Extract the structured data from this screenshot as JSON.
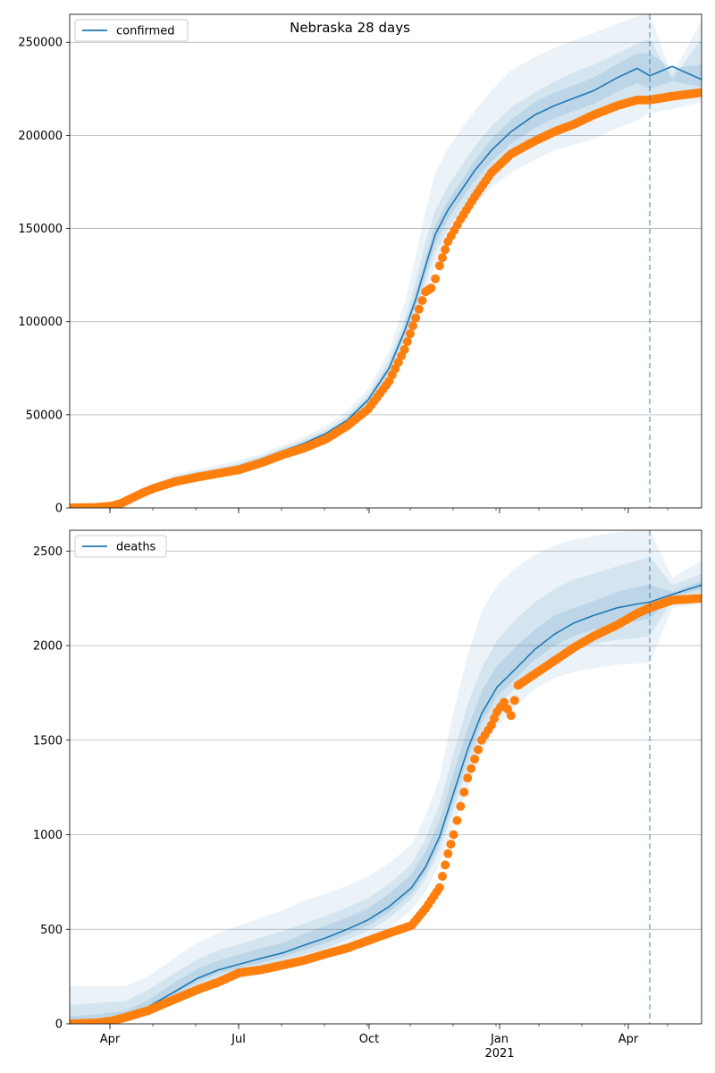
{
  "chart_data": [
    {
      "type": "line",
      "title": "Nebraska 28 days",
      "xlabel": "",
      "ylabel": "",
      "x_ticks": [
        "Apr",
        "Jul",
        "Oct",
        "Jan",
        "Apr"
      ],
      "x_ticks_secondary": [
        "",
        "",
        "",
        "2021",
        ""
      ],
      "xlim": [
        "2020-03-06",
        "2021-05-31"
      ],
      "ylim": [
        0,
        265000
      ],
      "y_ticks": [
        0,
        50000,
        100000,
        150000,
        200000,
        250000
      ],
      "grid": "horizontal",
      "legend": {
        "placement": "top-left",
        "entries": [
          "confirmed"
        ]
      },
      "forecast_date": "2021-04-24",
      "series": [
        {
          "name": "confirmed",
          "style": "line",
          "x": [
            "2020-03-06",
            "2020-03-25",
            "2020-04-05",
            "2020-04-20",
            "2020-05-05",
            "2020-05-20",
            "2020-06-05",
            "2020-06-20",
            "2020-07-05",
            "2020-07-20",
            "2020-08-05",
            "2020-08-20",
            "2020-09-05",
            "2020-09-20",
            "2020-10-05",
            "2020-10-20",
            "2020-10-31",
            "2020-11-08",
            "2020-11-15",
            "2020-11-22",
            "2020-12-01",
            "2020-12-10",
            "2020-12-20",
            "2021-01-01",
            "2021-01-15",
            "2021-02-01",
            "2021-02-15",
            "2021-03-01",
            "2021-03-15",
            "2021-04-01",
            "2021-04-15",
            "2021-04-24",
            "2021-05-10",
            "2021-05-31"
          ],
          "values": [
            0,
            100,
            1000,
            5000,
            11000,
            15500,
            18000,
            20000,
            22500,
            26000,
            30500,
            34500,
            40000,
            47000,
            58000,
            75000,
            95000,
            112000,
            130000,
            147000,
            160000,
            170000,
            181000,
            192000,
            202000,
            211000,
            216000,
            220000,
            224000,
            231000,
            236000,
            232000,
            237000,
            230000
          ],
          "bands": [
            {
              "level": "outer",
              "lower": [
                0,
                0,
                500,
                3500,
                9000,
                13000,
                15500,
                17500,
                20000,
                23000,
                27500,
                31500,
                37000,
                43000,
                53000,
                68000,
                86000,
                100000,
                115000,
                130000,
                142000,
                152000,
                162000,
                172000,
                180000,
                187000,
                192000,
                195000,
                198000,
                204000,
                208000,
                212000,
                214000,
                218000
              ],
              "upper": [
                300,
                500,
                1500,
                6500,
                13000,
                18000,
                20500,
                23000,
                25500,
                29000,
                33500,
                38000,
                44000,
                52000,
                64000,
                84000,
                110000,
                135000,
                160000,
                180000,
                193000,
                203000,
                213000,
                224000,
                235000,
                242000,
                247000,
                251000,
                255000,
                260000,
                264000,
                265000,
                232000,
                262000
              ]
            },
            {
              "level": "mid",
              "lower": [
                0,
                0,
                700,
                4000,
                9800,
                14000,
                16500,
                18500,
                21000,
                24500,
                28800,
                33000,
                38500,
                45000,
                55500,
                71000,
                90000,
                105000,
                121000,
                137000,
                150000,
                160000,
                170000,
                180000,
                189000,
                197000,
                202000,
                206000,
                210000,
                216000,
                220000,
                220000,
                222000,
                222000
              ],
              "upper": [
                200,
                300,
                1300,
                6000,
                12200,
                17000,
                19500,
                21500,
                24000,
                27500,
                32200,
                36500,
                42000,
                49500,
                61000,
                79500,
                101000,
                122000,
                143000,
                160000,
                173000,
                183000,
                194000,
                205000,
                215000,
                223000,
                229000,
                234000,
                238000,
                244000,
                249000,
                252000,
                230000,
                252000
              ]
            },
            {
              "level": "inner",
              "lower": [
                0,
                0,
                850,
                4500,
                10400,
                14800,
                17200,
                19300,
                21800,
                25300,
                29700,
                33700,
                39300,
                46000,
                56800,
                73000,
                92500,
                108500,
                125500,
                142000,
                155000,
                165000,
                175500,
                186000,
                195500,
                204000,
                209000,
                213000,
                217000,
                223500,
                228000,
                225000,
                229000,
                226000
              ],
              "upper": [
                100,
                200,
                1150,
                5500,
                11600,
                16200,
                18800,
                20700,
                23200,
                26700,
                31300,
                35300,
                40700,
                48000,
                59200,
                77000,
                97500,
                115500,
                134500,
                152000,
                165000,
                175000,
                186500,
                198000,
                208500,
                218000,
                223000,
                227000,
                231000,
                238500,
                244000,
                244000,
                236000,
                238000
              ]
            }
          ]
        },
        {
          "name": "",
          "style": "points",
          "x": [
            "2020-03-06",
            "2020-03-25",
            "2020-04-05",
            "2020-04-12",
            "2020-04-20",
            "2020-04-27",
            "2020-05-05",
            "2020-05-20",
            "2020-06-05",
            "2020-06-20",
            "2020-07-05",
            "2020-07-20",
            "2020-08-05",
            "2020-08-20",
            "2020-09-05",
            "2020-09-20",
            "2020-10-05",
            "2020-10-20",
            "2020-10-31",
            "2020-11-08",
            "2020-11-15",
            "2020-11-19",
            "2020-11-22",
            "2020-11-25",
            "2020-12-01",
            "2020-12-10",
            "2020-12-20",
            "2021-01-01",
            "2021-01-15",
            "2021-02-01",
            "2021-02-15",
            "2021-03-01",
            "2021-03-15",
            "2021-04-01",
            "2021-04-15",
            "2021-04-24",
            "2021-05-10",
            "2021-05-31"
          ],
          "values": [
            0,
            300,
            1000,
            2500,
            5500,
            8000,
            10500,
            14000,
            16500,
            18500,
            20500,
            24000,
            28500,
            32000,
            37000,
            44000,
            53000,
            68000,
            85000,
            102000,
            116000,
            118000,
            123000,
            130000,
            143000,
            155000,
            167000,
            180000,
            190000,
            197000,
            202000,
            206000,
            211000,
            216000,
            219000,
            219000,
            221000,
            223000
          ]
        }
      ]
    },
    {
      "type": "line",
      "title": "",
      "xlabel": "",
      "ylabel": "",
      "x_ticks": [
        "Apr",
        "Jul",
        "Oct",
        "Jan",
        "Apr"
      ],
      "x_ticks_secondary": [
        "",
        "",
        "",
        "2021",
        ""
      ],
      "xlim": [
        "2020-03-06",
        "2021-05-31"
      ],
      "ylim": [
        0,
        2610
      ],
      "y_ticks": [
        0,
        500,
        1000,
        1500,
        2000,
        2500
      ],
      "grid": "horizontal",
      "legend": {
        "placement": "top-left",
        "entries": [
          "deaths"
        ]
      },
      "forecast_date": "2021-04-24",
      "series": [
        {
          "name": "deaths",
          "style": "line",
          "x": [
            "2020-03-06",
            "2020-03-25",
            "2020-04-15",
            "2020-05-01",
            "2020-05-20",
            "2020-06-05",
            "2020-06-20",
            "2020-07-05",
            "2020-07-20",
            "2020-08-05",
            "2020-08-20",
            "2020-09-05",
            "2020-09-20",
            "2020-10-05",
            "2020-10-20",
            "2020-11-05",
            "2020-11-15",
            "2020-11-25",
            "2020-12-05",
            "2020-12-15",
            "2020-12-25",
            "2021-01-05",
            "2021-01-20",
            "2021-02-01",
            "2021-02-15",
            "2021-03-01",
            "2021-03-15",
            "2021-04-01",
            "2021-04-15",
            "2021-04-24",
            "2021-05-10",
            "2021-05-31"
          ],
          "values": [
            0,
            5,
            30,
            90,
            170,
            240,
            285,
            315,
            345,
            375,
            415,
            455,
            500,
            550,
            620,
            720,
            830,
            990,
            1220,
            1450,
            1640,
            1780,
            1890,
            1980,
            2060,
            2120,
            2160,
            2200,
            2220,
            2230,
            2270,
            2320
          ],
          "bands": [
            {
              "level": "outer",
              "lower": [
                0,
                0,
                5,
                40,
                110,
                170,
                210,
                240,
                260,
                290,
                320,
                355,
                395,
                440,
                505,
                600,
                700,
                850,
                1050,
                1250,
                1430,
                1570,
                1690,
                1770,
                1830,
                1860,
                1880,
                1900,
                1905,
                1910,
                2200,
                2220
              ],
              "upper": [
                200,
                200,
                200,
                250,
                350,
                430,
                480,
                520,
                560,
                600,
                650,
                690,
                730,
                780,
                850,
                950,
                1100,
                1300,
                1650,
                1950,
                2180,
                2320,
                2420,
                2480,
                2530,
                2560,
                2580,
                2600,
                2610,
                2610,
                2360,
                2450
              ]
            },
            {
              "level": "mid",
              "lower": [
                0,
                0,
                15,
                60,
                135,
                200,
                245,
                275,
                300,
                330,
                365,
                400,
                445,
                490,
                560,
                660,
                765,
                920,
                1130,
                1350,
                1540,
                1680,
                1790,
                1870,
                1940,
                1980,
                2010,
                2030,
                2040,
                2050,
                2240,
                2280
              ],
              "upper": [
                100,
                110,
                120,
                180,
                270,
                340,
                390,
                420,
                455,
                490,
                530,
                570,
                615,
                665,
                740,
                845,
                980,
                1160,
                1430,
                1690,
                1880,
                2030,
                2150,
                2230,
                2300,
                2350,
                2380,
                2420,
                2450,
                2470,
                2320,
                2380
              ]
            },
            {
              "level": "inner",
              "lower": [
                0,
                0,
                22,
                74,
                152,
                220,
                265,
                294,
                322,
                352,
                389,
                428,
                472,
                519,
                590,
                690,
                797,
                955,
                1175,
                1400,
                1590,
                1730,
                1840,
                1925,
                2000,
                2050,
                2085,
                2115,
                2130,
                2140,
                2255,
                2300
              ],
              "upper": [
                40,
                50,
                70,
                126,
                220,
                290,
                335,
                366,
                398,
                428,
                474,
                520,
                562,
                610,
                690,
                790,
                913,
                1075,
                1325,
                1560,
                1760,
                1895,
                2005,
                2085,
                2160,
                2200,
                2235,
                2285,
                2310,
                2320,
                2285,
                2340
              ]
            }
          ]
        },
        {
          "name": "",
          "style": "points",
          "x": [
            "2020-03-06",
            "2020-03-25",
            "2020-04-05",
            "2020-04-15",
            "2020-05-01",
            "2020-05-20",
            "2020-06-05",
            "2020-06-20",
            "2020-07-05",
            "2020-07-20",
            "2020-08-05",
            "2020-08-20",
            "2020-09-05",
            "2020-09-20",
            "2020-10-05",
            "2020-10-20",
            "2020-11-05",
            "2020-11-15",
            "2020-11-25",
            "2020-12-01",
            "2020-12-05",
            "2020-12-10",
            "2020-12-15",
            "2020-12-20",
            "2020-12-25",
            "2021-01-01",
            "2021-01-05",
            "2021-01-10",
            "2021-01-15",
            "2021-01-20",
            "2021-02-01",
            "2021-02-15",
            "2021-03-01",
            "2021-03-15",
            "2021-04-01",
            "2021-04-15",
            "2021-04-24",
            "2021-05-10",
            "2021-05-31"
          ],
          "values": [
            0,
            5,
            15,
            35,
            70,
            130,
            180,
            220,
            270,
            285,
            310,
            335,
            370,
            400,
            440,
            480,
            520,
            610,
            720,
            900,
            1000,
            1150,
            1300,
            1400,
            1500,
            1580,
            1650,
            1700,
            1630,
            1790,
            1850,
            1920,
            1990,
            2050,
            2110,
            2170,
            2200,
            2240,
            2250
          ]
        }
      ]
    }
  ]
}
